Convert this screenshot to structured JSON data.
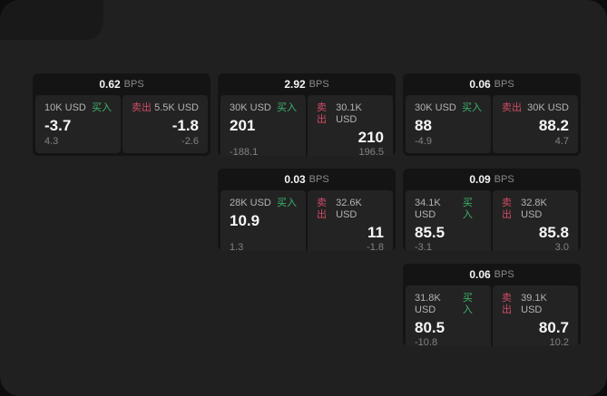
{
  "colors": {
    "panel_bg": "#202020",
    "card_bg": "#141414",
    "cell_bg": "#232323",
    "buy_green": "#3cb56b",
    "sell_red": "#d14b65",
    "value_white": "#f7f7f7",
    "muted_gray": "#828282"
  },
  "cards": [
    {
      "bps": "0.62",
      "bps_unit": "BPS",
      "buy": {
        "amount": "10K USD",
        "side": "买入",
        "value": "-3.7",
        "sub": "4.3"
      },
      "sell": {
        "side": "卖出",
        "amount": "5.5K USD",
        "value": "-1.8",
        "sub": "-2.6"
      }
    },
    {
      "bps": "2.92",
      "bps_unit": "BPS",
      "buy": {
        "amount": "30K USD",
        "side": "买入",
        "value": "201",
        "sub": "-188.1"
      },
      "sell": {
        "side": "卖出",
        "amount": "30.1K USD",
        "value": "210",
        "sub": "196.5"
      }
    },
    {
      "bps": "0.06",
      "bps_unit": "BPS",
      "buy": {
        "amount": "30K USD",
        "side": "买入",
        "value": "88",
        "sub": "-4.9"
      },
      "sell": {
        "side": "卖出",
        "amount": "30K USD",
        "value": "88.2",
        "sub": "4.7"
      }
    },
    {
      "bps": "0.03",
      "bps_unit": "BPS",
      "buy": {
        "amount": "28K USD",
        "side": "买入",
        "value": "10.9",
        "sub": "1.3"
      },
      "sell": {
        "side": "卖出",
        "amount": "32.6K USD",
        "value": "11",
        "sub": "-1.8"
      }
    },
    {
      "bps": "0.09",
      "bps_unit": "BPS",
      "buy": {
        "amount": "34.1K USD",
        "side": "买入",
        "value": "85.5",
        "sub": "-3.1"
      },
      "sell": {
        "side": "卖出",
        "amount": "32.8K USD",
        "value": "85.8",
        "sub": "3.0"
      }
    },
    {
      "bps": "0.06",
      "bps_unit": "BPS",
      "buy": {
        "amount": "31.8K USD",
        "side": "买入",
        "value": "80.5",
        "sub": "-10.8"
      },
      "sell": {
        "side": "卖出",
        "amount": "39.1K USD",
        "value": "80.7",
        "sub": "10.2"
      }
    }
  ]
}
